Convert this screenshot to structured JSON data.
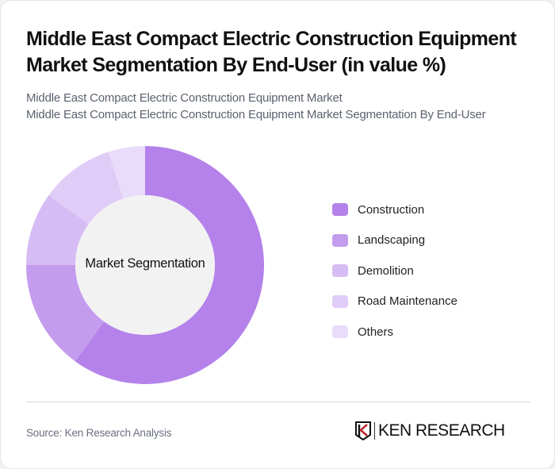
{
  "header": {
    "title": "Middle East Compact Electric Construction Equipment Market Segmentation By End-User (in value %)",
    "subtitle_line1": "Middle East Compact Electric Construction Equipment Market",
    "subtitle_line2": "Middle East Compact Electric Construction Equipment Market Segmentation By End-User"
  },
  "chart": {
    "center_label": "Market Segmentation"
  },
  "legend": [
    {
      "label": "Construction",
      "color": "#b482ea"
    },
    {
      "label": "Landscaping",
      "color": "#c49cee"
    },
    {
      "label": "Demolition",
      "color": "#d6bcf4"
    },
    {
      "label": "Road Maintenance",
      "color": "#e0cdf7"
    },
    {
      "label": "Others",
      "color": "#e9dcfa"
    }
  ],
  "footer": {
    "source": "Source: Ken Research Analysis",
    "logo_text": "KEN RESEARCH"
  },
  "chart_data": {
    "type": "pie",
    "subtype": "donut",
    "title": "Middle East Compact Electric Construction Equipment Market Segmentation By End-User (in value %)",
    "center_label": "Market Segmentation",
    "categories": [
      "Construction",
      "Landscaping",
      "Demolition",
      "Road Maintenance",
      "Others"
    ],
    "values": [
      60,
      15,
      10,
      10,
      5
    ],
    "colors": [
      "#b482ea",
      "#c49cee",
      "#d6bcf4",
      "#e0cdf7",
      "#e9dcfa"
    ],
    "legend_position": "right",
    "unit": "%"
  }
}
